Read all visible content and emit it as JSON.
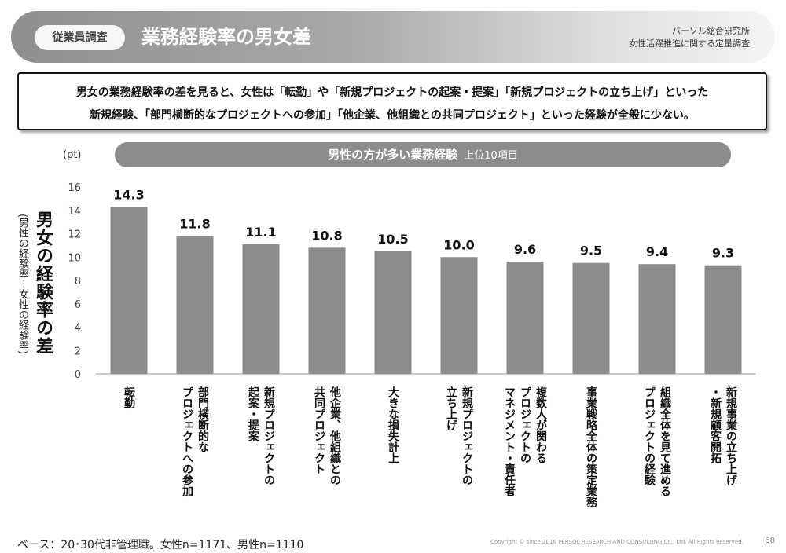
{
  "header": {
    "badge": "従業員調査",
    "title": "業務経験率の男女差",
    "org_line1": "パーソル総合研究所",
    "org_line2": "女性活躍推進に関する定量調査"
  },
  "summary": {
    "line1": "男女の業務経験率の差を見ると、女性は「転勤」や「新規プロジェクトの起案・提案」「新規プロジェクトの立ち上げ」といった",
    "line2": "新規経験、「部門横断的なプロジェクトへの参加」「他企業、他組織との共同プロジェクト」といった経験が全般に少ない。"
  },
  "chart_data": {
    "type": "bar",
    "title": "男性の方が多い業務経験",
    "subtitle": "上位10項目",
    "unit": "(pt)",
    "ylabel": "男女の経験率の差",
    "ylabel_sub": "(男性の経験率ー女性の経験率)",
    "ylim": [
      0,
      16
    ],
    "yticks": [
      "0",
      "2",
      "4",
      "6",
      "8",
      "10",
      "12",
      "14",
      "16"
    ],
    "grid": false,
    "bar_color": "#8c8c8c",
    "categories": [
      [
        "転勤"
      ],
      [
        "部門横断的な",
        "プロジェクトへの参加"
      ],
      [
        "新規プロジェクトの",
        "起案・提案"
      ],
      [
        "他企業、他組織との",
        "共同プロジェクト"
      ],
      [
        "大きな損失計上"
      ],
      [
        "新規プロジェクトの",
        "立ち上げ"
      ],
      [
        "複数人が関わる",
        "プロジェクトの",
        "マネジメント・責任者"
      ],
      [
        "事業戦略全体の策定業務"
      ],
      [
        "組織全体を見て進める",
        "プロジェクトの経験"
      ],
      [
        "新規事業の立ち上げ",
        "・新規顧客開拓"
      ]
    ],
    "values": [
      14.3,
      11.8,
      11.1,
      10.8,
      10.5,
      10.0,
      9.6,
      9.5,
      9.4,
      9.3
    ],
    "value_labels": [
      "14.3",
      "11.8",
      "11.1",
      "10.8",
      "10.5",
      "10.0",
      "9.6",
      "9.5",
      "9.4",
      "9.3"
    ]
  },
  "footer": {
    "base_note": "ベース：20･30代非管理職。女性n=1171、男性n=1110",
    "copyright": "Copyright © since 2016 PERSOL RESEARCH AND CONSULTING Co., Ltd. All Rights Reserved.",
    "page": "68"
  }
}
